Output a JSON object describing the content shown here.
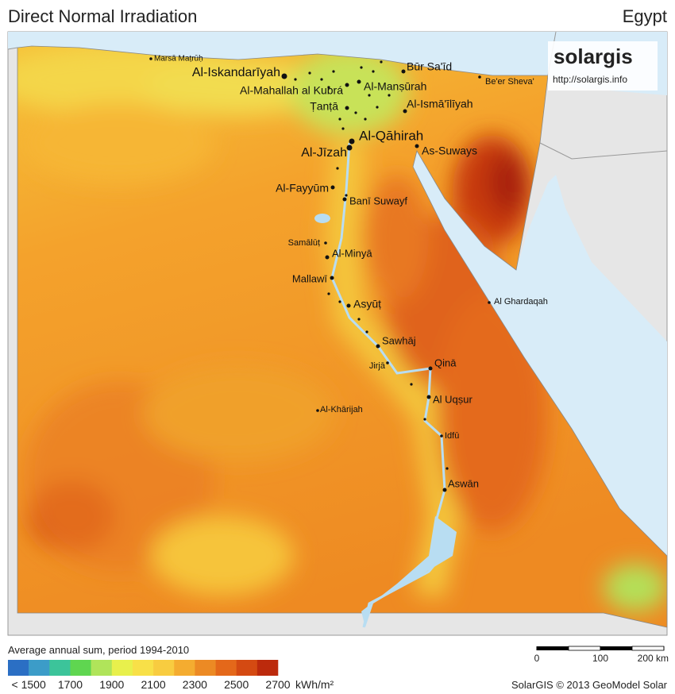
{
  "header": {
    "title": "Direct Normal Irradiation",
    "country": "Egypt"
  },
  "logo": {
    "name": "solargis",
    "url": "http://solargis.info"
  },
  "cities": [
    "Marsā Maṭrūḥ",
    "Al-Iskandarīyah",
    "Būr Sa'īd",
    "Be'er Sheva'",
    "Al-Mahallah al Kubrá",
    "Al-Manṣūrah",
    "Ṭanṭā",
    "Al-Ismā'īlīyah",
    "Al-Qāhirah",
    "Al-Jīzah",
    "As-Suways",
    "Al-Fayyūm",
    "Banī Suwayf",
    "Samālūṭ",
    "Al-Minyā",
    "Mallawī",
    "Asyūṭ",
    "Sawhāj",
    "Jirjā",
    "Qinā",
    "Al Uqṣur",
    "Al-Khārijah",
    "Idfū",
    "Aswān",
    "Al Ghardaqah"
  ],
  "legend": {
    "title": "Average annual sum, period 1994-2010",
    "ticks": [
      {
        "value": 1500,
        "label": "< 1500"
      },
      1700,
      1900,
      2100,
      2300,
      2500,
      2700
    ],
    "unit": "kWh/m²",
    "colors": [
      "#2b6fc4",
      "#3c9cc8",
      "#3cc49a",
      "#5fd650",
      "#b0e45a",
      "#e8f04c",
      "#f8e048",
      "#f8cc40",
      "#f4ac30",
      "#ec8a24",
      "#e4681a",
      "#d44a12",
      "#bc2a0c"
    ]
  },
  "scale_bar": {
    "ticks": [
      0,
      100,
      {
        "value": 200,
        "label": "200 km"
      }
    ]
  },
  "credit": "SolarGIS © 2013 GeoModel Solar"
}
